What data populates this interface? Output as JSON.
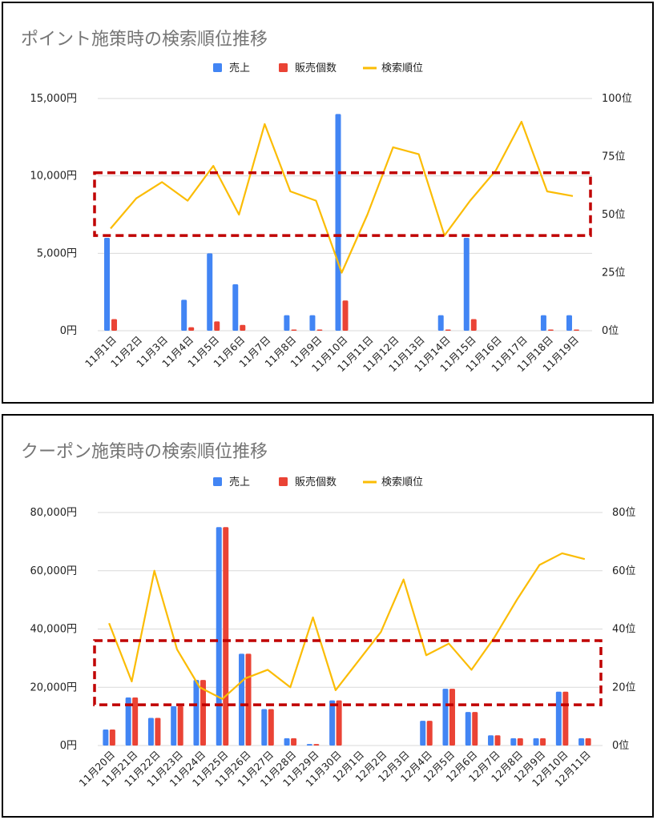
{
  "colors": {
    "sales": "#4285f4",
    "units": "#ea4335",
    "rank": "#fbbc04",
    "highlight": "#c00000"
  },
  "chart_data": [
    {
      "type": "bar",
      "title": "ポイント施策時の検索順位推移",
      "legend": [
        "売上",
        "販売個数",
        "検索順位"
      ],
      "legend_position": "top",
      "categories": [
        "11月1日",
        "11月2日",
        "11月3日",
        "11月4日",
        "11月5日",
        "11月6日",
        "11月7日",
        "11月8日",
        "11月9日",
        "11月10日",
        "11月11日",
        "11月12日",
        "11月13日",
        "11月14日",
        "11月15日",
        "11月16日",
        "11月17日",
        "11月18日",
        "11月19日"
      ],
      "y_left": {
        "min": 0,
        "max": 15000,
        "ticks": [
          "0円",
          "5,000円",
          "10,000円",
          "15,000円"
        ]
      },
      "y_right": {
        "min": 0,
        "max": 100,
        "ticks": [
          "0位",
          "25位",
          "50位",
          "75位",
          "100位"
        ]
      },
      "series": [
        {
          "name": "売上",
          "type": "bar",
          "axis": "left",
          "values": [
            6000,
            0,
            0,
            2000,
            5000,
            3000,
            0,
            1000,
            1000,
            14000,
            0,
            0,
            0,
            1000,
            6000,
            0,
            0,
            1000,
            1000
          ]
        },
        {
          "name": "販売個数",
          "type": "bar",
          "axis": "right",
          "values": [
            5,
            0,
            0,
            1.5,
            4,
            2.5,
            0,
            0.5,
            0.5,
            13,
            0,
            0,
            0,
            0.5,
            5,
            0,
            0,
            0.5,
            0.5
          ]
        },
        {
          "name": "検索順位",
          "type": "line",
          "axis": "right",
          "values": [
            44,
            57,
            64,
            56,
            71,
            50,
            89,
            60,
            56,
            25,
            50,
            79,
            76,
            41,
            56,
            69,
            90,
            60,
            58
          ]
        }
      ],
      "highlight_box": {
        "y_right_from": 41,
        "y_right_to": 68
      },
      "grid": true
    },
    {
      "type": "bar",
      "title": "クーポン施策時の検索順位推移",
      "legend": [
        "売上",
        "販売個数",
        "検索順位"
      ],
      "legend_position": "top",
      "categories": [
        "11月20日",
        "11月21日",
        "11月22日",
        "11月23日",
        "11月24日",
        "11月25日",
        "11月26日",
        "11月27日",
        "11月28日",
        "11月29日",
        "11月30日",
        "12月1日",
        "12月2日",
        "12月3日",
        "12月4日",
        "12月5日",
        "12月6日",
        "12月7日",
        "12月8日",
        "12月9日",
        "12月10日",
        "12月11日"
      ],
      "y_left": {
        "min": 0,
        "max": 80000,
        "ticks": [
          "0円",
          "20,000円",
          "40,000円",
          "60,000円",
          "80,000円"
        ]
      },
      "y_right": {
        "min": 0,
        "max": 80,
        "ticks": [
          "0位",
          "20位",
          "40位",
          "60位",
          "80位"
        ]
      },
      "series": [
        {
          "name": "売上",
          "type": "bar",
          "axis": "left",
          "values": [
            5500,
            16500,
            9500,
            13500,
            22500,
            75000,
            31500,
            12500,
            2500,
            500,
            15500,
            0,
            0,
            0,
            8500,
            19500,
            11500,
            3500,
            2500,
            2500,
            18500,
            2500
          ]
        },
        {
          "name": "販売個数",
          "type": "bar",
          "axis": "right",
          "values": [
            5.5,
            16.5,
            9.5,
            13.5,
            22.5,
            75,
            31.5,
            12.5,
            2.5,
            0.5,
            15.5,
            0,
            0,
            0,
            8.5,
            19.5,
            11.5,
            3.5,
            2.5,
            2.5,
            18.5,
            2.5
          ]
        },
        {
          "name": "検索順位",
          "type": "line",
          "axis": "right",
          "values": [
            42,
            22,
            60,
            33,
            20,
            16,
            23,
            26,
            20,
            44,
            19,
            29,
            39,
            57,
            31,
            35,
            26,
            37,
            50,
            62,
            66,
            64
          ]
        }
      ],
      "highlight_box": {
        "y_right_from": 14,
        "y_right_to": 36
      },
      "grid": true
    }
  ]
}
